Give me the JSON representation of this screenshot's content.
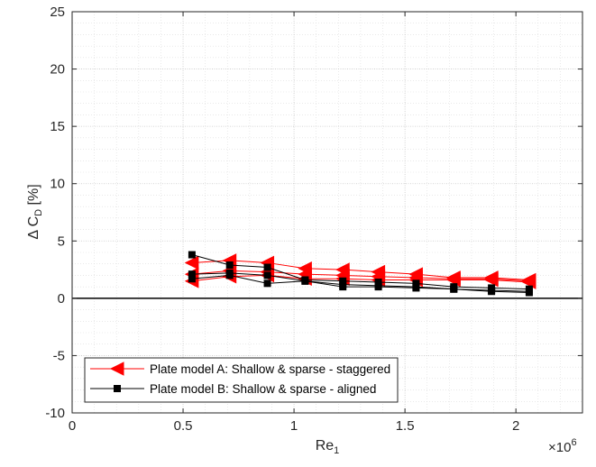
{
  "chart_data": {
    "type": "line",
    "title": "",
    "xlabel": "Re",
    "xlabel_sub": "1",
    "ylabel": "Δ C",
    "ylabel_sub": "D",
    "ylabel_unit": " [%]",
    "x_exponent_base": "×10",
    "x_exponent_power": "6",
    "xlim": [
      0,
      2.3
    ],
    "ylim": [
      -10,
      25
    ],
    "x_ticks": [
      0,
      0.5,
      1,
      1.5,
      2
    ],
    "x_tick_labels": [
      "0",
      "0.5",
      "1",
      "1.5",
      "2"
    ],
    "y_ticks": [
      -10,
      -5,
      0,
      5,
      10,
      15,
      20,
      25
    ],
    "y_tick_labels": [
      "-10",
      "-5",
      "0",
      "5",
      "10",
      "15",
      "20",
      "25"
    ],
    "grid": true,
    "minor_grid": true,
    "zero_line": true,
    "legend_position": "bottom-left",
    "series": [
      {
        "name": "Plate model A: Shallow & sparse - staggered",
        "color": "#ff0000",
        "marker": "triangle-left",
        "x": [
          0.54,
          0.54,
          0.54,
          0.71,
          0.71,
          0.71,
          0.88,
          0.88,
          0.88,
          1.05,
          1.05,
          1.05,
          1.22,
          1.22,
          1.22,
          1.38,
          1.38,
          1.38,
          1.55,
          1.55,
          1.55,
          1.72,
          1.72,
          1.72,
          1.89,
          1.89,
          1.89,
          2.06,
          2.06,
          2.06
        ],
        "y": [
          3.1,
          2.1,
          1.5,
          3.3,
          2.4,
          1.9,
          3.1,
          2.3,
          2.0,
          2.6,
          2.1,
          1.7,
          2.5,
          2.0,
          1.7,
          2.3,
          1.9,
          1.6,
          2.1,
          1.8,
          1.6,
          1.8,
          1.7,
          1.6,
          1.8,
          1.7,
          1.6,
          1.6,
          1.5,
          1.4
        ]
      },
      {
        "name": "Plate model B: Shallow & sparse - aligned",
        "color": "#000000",
        "marker": "square",
        "x": [
          0.54,
          0.54,
          0.54,
          0.71,
          0.71,
          0.71,
          0.88,
          0.88,
          0.88,
          1.05,
          1.05,
          1.05,
          1.22,
          1.22,
          1.22,
          1.38,
          1.38,
          1.38,
          1.55,
          1.55,
          1.55,
          1.72,
          1.72,
          1.72,
          1.89,
          1.89,
          1.89,
          2.06,
          2.06,
          2.06
        ],
        "y": [
          3.8,
          2.1,
          1.7,
          2.9,
          2.2,
          2.0,
          2.7,
          2.0,
          1.3,
          1.6,
          1.5,
          1.5,
          1.5,
          1.2,
          1.0,
          1.4,
          1.1,
          1.0,
          1.3,
          1.0,
          0.9,
          1.0,
          0.8,
          0.8,
          0.9,
          0.7,
          0.6,
          0.8,
          0.6,
          0.5
        ]
      }
    ]
  }
}
